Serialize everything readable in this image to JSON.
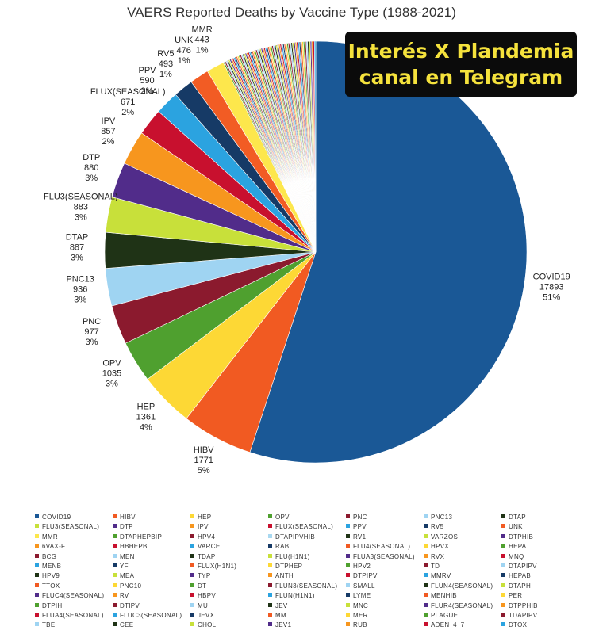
{
  "banner": {
    "line1": "Interés X Plandemia",
    "line2": "canal en Telegram"
  },
  "chart_data": {
    "type": "pie",
    "title": "VAERS Reported Deaths by Vaccine Type (1988-2021)",
    "start": "12 o'clock",
    "direction": "clockwise",
    "labeled_slices": [
      {
        "name": "COVID19",
        "value": 17893,
        "pct": "51%",
        "color": "#1a5896"
      },
      {
        "name": "HIBV",
        "value": 1771,
        "pct": "5%",
        "color": "#f15a22"
      },
      {
        "name": "HEP",
        "value": 1361,
        "pct": "4%",
        "color": "#fdd835"
      },
      {
        "name": "OPV",
        "value": 1035,
        "pct": "3%",
        "color": "#4fa02f"
      },
      {
        "name": "PNC",
        "value": 977,
        "pct": "3%",
        "color": "#8b1a2e"
      },
      {
        "name": "PNC13",
        "value": 936,
        "pct": "3%",
        "color": "#9fd4f2"
      },
      {
        "name": "DTAP",
        "value": 887,
        "pct": "3%",
        "color": "#1f3316"
      },
      {
        "name": "FLU3(SEASONAL)",
        "value": 883,
        "pct": "3%",
        "color": "#c8e03a"
      },
      {
        "name": "DTP",
        "value": 880,
        "pct": "3%",
        "color": "#512c8a"
      },
      {
        "name": "IPV",
        "value": 857,
        "pct": "2%",
        "color": "#f7961e"
      },
      {
        "name": "FLUX(SEASONAL)",
        "value": 671,
        "pct": "2%",
        "color": "#c8102e"
      },
      {
        "name": "PPV",
        "value": 590,
        "pct": "2%",
        "color": "#2ba3e0"
      },
      {
        "name": "RV5",
        "value": 493,
        "pct": "1%",
        "color": "#163a66"
      },
      {
        "name": "UNK",
        "value": 476,
        "pct": "1%",
        "color": "#f25c24"
      },
      {
        "name": "MMR",
        "value": 443,
        "pct": "1%",
        "color": "#fde74c"
      }
    ],
    "small_slices": [
      {
        "name": "DTAPHEPBIP",
        "color": "#4fa02f"
      },
      {
        "name": "HPV4",
        "color": "#8b1a2e"
      },
      {
        "name": "DTAPIPVHIB",
        "color": "#a8d8f0"
      },
      {
        "name": "RV1",
        "color": "#1f3316"
      },
      {
        "name": "VARZOS",
        "color": "#c8e03a"
      },
      {
        "name": "DTPHIB",
        "color": "#512c8a"
      },
      {
        "name": "6VAX-F",
        "color": "#f7961e"
      },
      {
        "name": "HBHEPB",
        "color": "#c8102e"
      },
      {
        "name": "VARCEL",
        "color": "#2ba3e0"
      },
      {
        "name": "RAB",
        "color": "#163a66"
      },
      {
        "name": "FLU4(SEASONAL)",
        "color": "#f15a22"
      },
      {
        "name": "HPVX",
        "color": "#fdd835"
      },
      {
        "name": "HEPA",
        "color": "#4fa02f"
      },
      {
        "name": "BCG",
        "color": "#8b1a2e"
      },
      {
        "name": "MEN",
        "color": "#9fd4f2"
      },
      {
        "name": "TDAP",
        "color": "#1f3316"
      },
      {
        "name": "FLU(H1N1)",
        "color": "#c8e03a"
      },
      {
        "name": "FLUA3(SEASONAL)",
        "color": "#512c8a"
      },
      {
        "name": "RVX",
        "color": "#f7961e"
      },
      {
        "name": "MNQ",
        "color": "#c8102e"
      },
      {
        "name": "MENB",
        "color": "#2ba3e0"
      },
      {
        "name": "YF",
        "color": "#163a66"
      },
      {
        "name": "FLUX(H1N1)",
        "color": "#f15a22"
      },
      {
        "name": "DTPHEP",
        "color": "#fdd835"
      },
      {
        "name": "HPV2",
        "color": "#4fa02f"
      },
      {
        "name": "TD",
        "color": "#8b1a2e"
      },
      {
        "name": "DTAPIPV",
        "color": "#9fd4f2"
      },
      {
        "name": "HPV9",
        "color": "#1f3316"
      },
      {
        "name": "MEA",
        "color": "#c8e03a"
      },
      {
        "name": "TYP",
        "color": "#512c8a"
      },
      {
        "name": "ANTH",
        "color": "#f7961e"
      },
      {
        "name": "DTPIPV",
        "color": "#c8102e"
      },
      {
        "name": "MMRV",
        "color": "#2ba3e0"
      },
      {
        "name": "HEPAB",
        "color": "#163a66"
      },
      {
        "name": "TTOX",
        "color": "#f15a22"
      },
      {
        "name": "PNC10",
        "color": "#fdd835"
      },
      {
        "name": "DT",
        "color": "#4fa02f"
      },
      {
        "name": "FLUN3(SEASONAL)",
        "color": "#8b1a2e"
      },
      {
        "name": "SMALL",
        "color": "#9fd4f2"
      },
      {
        "name": "FLUN4(SEASONAL)",
        "color": "#1f3316"
      },
      {
        "name": "DTAPH",
        "color": "#c8e03a"
      },
      {
        "name": "FLUC4(SEASONAL)",
        "color": "#512c8a"
      },
      {
        "name": "RV",
        "color": "#f7961e"
      },
      {
        "name": "HBPV",
        "color": "#c8102e"
      },
      {
        "name": "FLUN(H1N1)",
        "color": "#2ba3e0"
      },
      {
        "name": "LYME",
        "color": "#163a66"
      },
      {
        "name": "MENHIB",
        "color": "#f15a22"
      },
      {
        "name": "PER",
        "color": "#fdd835"
      },
      {
        "name": "DTPIHI",
        "color": "#4fa02f"
      },
      {
        "name": "DTIPV",
        "color": "#8b1a2e"
      },
      {
        "name": "MU",
        "color": "#9fd4f2"
      },
      {
        "name": "JEV",
        "color": "#1f3316"
      },
      {
        "name": "MNC",
        "color": "#c8e03a"
      },
      {
        "name": "FLUR4(SEASONAL)",
        "color": "#512c8a"
      },
      {
        "name": "DTPPHIB",
        "color": "#f7961e"
      },
      {
        "name": "FLUA4(SEASONAL)",
        "color": "#c8102e"
      },
      {
        "name": "FLUC3(SEASONAL)",
        "color": "#2ba3e0"
      },
      {
        "name": "JEVX",
        "color": "#163a66"
      },
      {
        "name": "MM",
        "color": "#f15a22"
      },
      {
        "name": "MER",
        "color": "#fdd835"
      },
      {
        "name": "PLAGUE",
        "color": "#4fa02f"
      },
      {
        "name": "TDAPIPV",
        "color": "#8b1a2e"
      },
      {
        "name": "TBE",
        "color": "#9fd4f2"
      },
      {
        "name": "CEE",
        "color": "#1f3316"
      },
      {
        "name": "CHOL",
        "color": "#c8e03a"
      },
      {
        "name": "JEV1",
        "color": "#512c8a"
      },
      {
        "name": "RUB",
        "color": "#f7961e"
      },
      {
        "name": "ADEN_4_7",
        "color": "#c8102e"
      },
      {
        "name": "DTOX",
        "color": "#2ba3e0"
      }
    ],
    "legend": {
      "placement": "bottom",
      "columns": 7
    }
  }
}
